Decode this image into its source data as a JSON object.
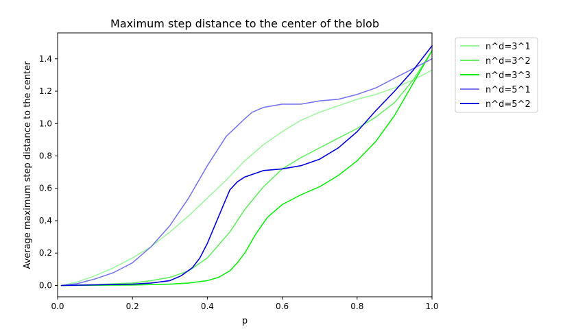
{
  "chart_data": {
    "type": "line",
    "title": "Maximum step distance to the center of the blob",
    "xlabel": "p",
    "ylabel": "Average maximum step distance to the center",
    "xlim": [
      0.0,
      1.0
    ],
    "ylim": [
      -0.07,
      1.56
    ],
    "xticks": [
      "0.0",
      "0.2",
      "0.4",
      "0.6",
      "0.8",
      "1.0"
    ],
    "yticks": [
      "0.0",
      "0.2",
      "0.4",
      "0.6",
      "0.8",
      "1.0",
      "1.2",
      "1.4"
    ],
    "grid": false,
    "legend_position": "outside-top-right",
    "series": [
      {
        "name": "n^d=3^1",
        "color": "#a0f5a0",
        "x": [
          0.01,
          0.05,
          0.1,
          0.15,
          0.2,
          0.25,
          0.3,
          0.35,
          0.4,
          0.45,
          0.5,
          0.55,
          0.6,
          0.65,
          0.7,
          0.75,
          0.8,
          0.85,
          0.9,
          0.95,
          1.0
        ],
        "y": [
          0.0,
          0.02,
          0.06,
          0.11,
          0.17,
          0.24,
          0.33,
          0.43,
          0.54,
          0.65,
          0.77,
          0.87,
          0.95,
          1.02,
          1.07,
          1.11,
          1.15,
          1.18,
          1.22,
          1.27,
          1.33
        ]
      },
      {
        "name": "n^d=3^2",
        "color": "#66ee66",
        "x": [
          0.01,
          0.1,
          0.2,
          0.25,
          0.3,
          0.35,
          0.4,
          0.43,
          0.46,
          0.5,
          0.55,
          0.6,
          0.65,
          0.7,
          0.75,
          0.8,
          0.85,
          0.9,
          0.95,
          1.0
        ],
        "y": [
          0.0,
          0.005,
          0.015,
          0.03,
          0.05,
          0.09,
          0.17,
          0.25,
          0.33,
          0.47,
          0.61,
          0.72,
          0.79,
          0.85,
          0.91,
          0.97,
          1.04,
          1.13,
          1.27,
          1.45
        ]
      },
      {
        "name": "n^d=3^3",
        "color": "#11ee11",
        "x": [
          0.01,
          0.2,
          0.3,
          0.35,
          0.4,
          0.43,
          0.46,
          0.48,
          0.5,
          0.53,
          0.56,
          0.6,
          0.65,
          0.7,
          0.75,
          0.8,
          0.85,
          0.9,
          0.95,
          1.0
        ],
        "y": [
          0.0,
          0.003,
          0.008,
          0.015,
          0.03,
          0.05,
          0.09,
          0.14,
          0.2,
          0.32,
          0.42,
          0.5,
          0.56,
          0.61,
          0.68,
          0.77,
          0.89,
          1.05,
          1.25,
          1.45
        ]
      },
      {
        "name": "n^d=5^1",
        "color": "#7777ee",
        "x": [
          0.01,
          0.05,
          0.1,
          0.15,
          0.2,
          0.25,
          0.3,
          0.35,
          0.4,
          0.45,
          0.5,
          0.52,
          0.55,
          0.6,
          0.65,
          0.7,
          0.75,
          0.8,
          0.85,
          0.9,
          0.95,
          1.0
        ],
        "y": [
          0.0,
          0.01,
          0.04,
          0.08,
          0.14,
          0.24,
          0.37,
          0.54,
          0.74,
          0.92,
          1.03,
          1.07,
          1.1,
          1.12,
          1.12,
          1.14,
          1.15,
          1.18,
          1.22,
          1.28,
          1.34,
          1.4
        ]
      },
      {
        "name": "n^d=5^2",
        "color": "#0000dd",
        "x": [
          0.01,
          0.2,
          0.25,
          0.3,
          0.33,
          0.36,
          0.38,
          0.4,
          0.42,
          0.44,
          0.46,
          0.48,
          0.5,
          0.55,
          0.6,
          0.65,
          0.7,
          0.75,
          0.8,
          0.85,
          0.9,
          0.95,
          1.0
        ],
        "y": [
          0.0,
          0.008,
          0.015,
          0.03,
          0.06,
          0.11,
          0.17,
          0.26,
          0.37,
          0.48,
          0.59,
          0.64,
          0.67,
          0.71,
          0.72,
          0.74,
          0.78,
          0.85,
          0.95,
          1.08,
          1.2,
          1.33,
          1.48
        ]
      }
    ]
  }
}
